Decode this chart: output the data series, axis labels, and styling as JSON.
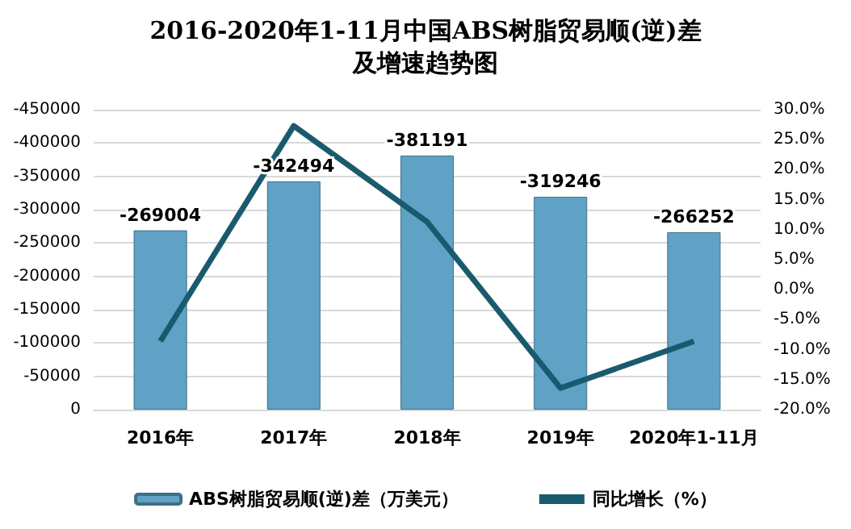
{
  "chart_data": {
    "type": "bar",
    "title": "2016-2020年1-11月中国ABS树脂贸易顺(逆)差及增速趋势图",
    "categories": [
      "2016年",
      "2017年",
      "2018年",
      "2019年",
      "2020年1-11月"
    ],
    "series": [
      {
        "name": "ABS树脂贸易顺(逆)差（万美元）",
        "color": "#5fa2c5",
        "values": [
          -269004,
          -342494,
          -381191,
          -319246,
          -266252
        ],
        "value_labels": [
          "-269004",
          "-342494",
          "-381191",
          "-319246",
          "-266252"
        ]
      },
      {
        "name": "同比增长（%）",
        "type": "line",
        "axis": "y2",
        "color": "#1a5a6e",
        "values": [
          -8.6,
          27.3,
          11.3,
          -16.4,
          -8.6
        ]
      }
    ],
    "ylim": [
      0,
      -450000
    ],
    "yticks": [
      0,
      -50000,
      -100000,
      -150000,
      -200000,
      -250000,
      -300000,
      -350000,
      -400000,
      -450000
    ],
    "y2lim": [
      -20,
      30
    ],
    "y2ticks": [
      {
        "value": -20,
        "label": "-20.0%"
      },
      {
        "value": -15,
        "label": "-15.0%"
      },
      {
        "value": -10,
        "label": "-10.0%"
      },
      {
        "value": -5,
        "label": "-5.0%"
      },
      {
        "value": 0,
        "label": "0.0%"
      },
      {
        "value": 5,
        "label": "5.0%"
      },
      {
        "value": 10,
        "label": "10.0%"
      },
      {
        "value": 15,
        "label": "15.0%"
      },
      {
        "value": 20,
        "label": "20.0%"
      },
      {
        "value": 25,
        "label": "25.0%"
      },
      {
        "value": 30,
        "label": "30.0%"
      }
    ],
    "grid": "y",
    "legend": "bottom",
    "marker": "none"
  }
}
